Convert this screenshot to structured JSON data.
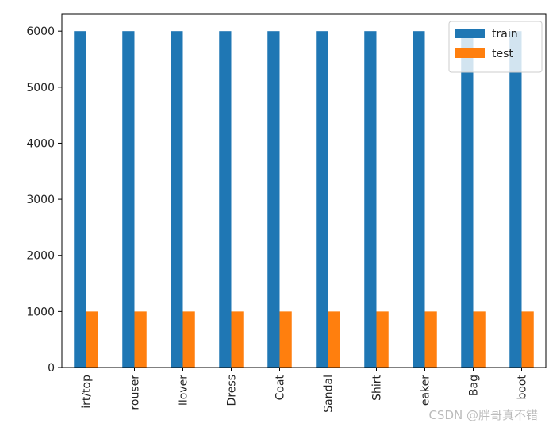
{
  "chart_data": {
    "type": "bar",
    "categories": [
      "irt/top",
      "rouser",
      "llover",
      "Dress",
      "Coat",
      "Sandal",
      "Shirt",
      "eaker",
      "Bag",
      "boot"
    ],
    "series": [
      {
        "name": "train",
        "color": "#1f77b4",
        "values": [
          6000,
          6000,
          6000,
          6000,
          6000,
          6000,
          6000,
          6000,
          6000,
          6000
        ]
      },
      {
        "name": "test",
        "color": "#ff7f0e",
        "values": [
          1000,
          1000,
          1000,
          1000,
          1000,
          1000,
          1000,
          1000,
          1000,
          1000
        ]
      }
    ],
    "ylim": [
      0,
      6300
    ],
    "yticks": [
      0,
      1000,
      2000,
      3000,
      4000,
      5000,
      6000
    ],
    "grid": false,
    "legend": "upper right"
  },
  "watermark": "CSDN @胖哥真不错"
}
